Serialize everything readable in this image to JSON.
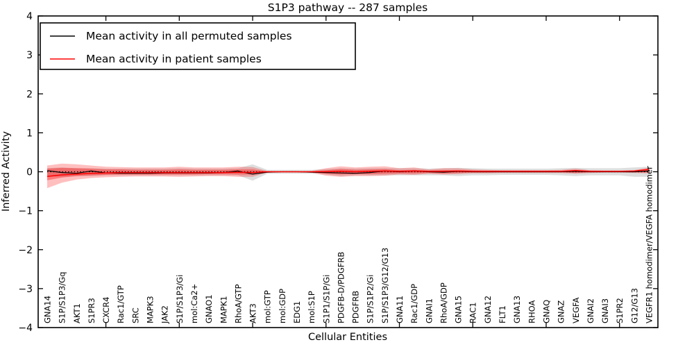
{
  "chart_data": {
    "type": "line",
    "title": "S1P3 pathway -- 287 samples",
    "xlabel": "Cellular Entities",
    "ylabel": "Inferred Activity",
    "ylim": [
      -4,
      4
    ],
    "y_ticks": [
      -4,
      -3,
      -2,
      -1,
      0,
      1,
      2,
      3,
      4
    ],
    "x_tick_indices": [
      4,
      9,
      14,
      19,
      24,
      29,
      34,
      39
    ],
    "grid": false,
    "legend_position": "upper-left",
    "categories": [
      "GNA14",
      "S1P/S1P3/Gq",
      "AKT1",
      "S1PR3",
      "CXCR4",
      "Rac1/GTP",
      "SRC",
      "MAPK3",
      "JAK2",
      "S1P/S1P3/Gi",
      "mol:Ca2+",
      "GNAO1",
      "MAPK1",
      "RhoA/GTP",
      "AKT3",
      "mol:GTP",
      "mol:GDP",
      "EDG1",
      "mol:S1P",
      "S1P1/S1P/Gi",
      "PDGFB-D/PDGFRB",
      "PDGFRB",
      "S1P/S1P2/Gi",
      "S1P/S1P3/G12/G13",
      "GNA11",
      "Rac1/GDP",
      "GNAI1",
      "RhoA/GDP",
      "GNA15",
      "RAC1",
      "GNA12",
      "FLT1",
      "GNA13",
      "RHOA",
      "GNAQ",
      "GNAZ",
      "VEGFA",
      "GNAI2",
      "GNAI3",
      "S1PR2",
      "G12/G13",
      "VEGFR1 homodimer/VEGFA homodimer"
    ],
    "series": [
      {
        "name": "Mean activity in all permuted samples",
        "color": "#000000",
        "values": [
          0.03,
          -0.02,
          -0.04,
          0.02,
          -0.03,
          -0.04,
          -0.04,
          -0.04,
          -0.03,
          -0.03,
          -0.03,
          -0.03,
          -0.02,
          0.02,
          -0.06,
          -0.01,
          0.0,
          0.0,
          -0.01,
          -0.02,
          -0.03,
          -0.04,
          -0.02,
          0.02,
          0.0,
          0.02,
          0.0,
          -0.01,
          0.01,
          0.0,
          0.0,
          0.0,
          0.0,
          0.0,
          0.0,
          0.0,
          0.01,
          0.0,
          0.0,
          0.0,
          0.0,
          0.02
        ]
      },
      {
        "name": "Mean activity in patient samples",
        "color": "#ff0000",
        "values": [
          -0.12,
          -0.08,
          -0.06,
          -0.04,
          -0.03,
          -0.02,
          -0.02,
          -0.02,
          -0.02,
          -0.02,
          -0.02,
          -0.02,
          -0.02,
          -0.01,
          -0.02,
          0.0,
          0.0,
          0.0,
          0.0,
          0.0,
          0.01,
          0.0,
          0.01,
          0.02,
          0.01,
          0.02,
          0.01,
          0.01,
          0.02,
          0.01,
          0.01,
          0.01,
          0.01,
          0.01,
          0.01,
          0.01,
          0.03,
          0.01,
          0.01,
          0.01,
          0.02,
          0.06
        ]
      }
    ],
    "bands": [
      {
        "name": "permuted-range",
        "color": "rgba(0,0,0,0.13)",
        "upper": [
          0.09,
          0.11,
          0.09,
          0.09,
          0.08,
          0.08,
          0.08,
          0.08,
          0.08,
          0.09,
          0.08,
          0.08,
          0.08,
          0.09,
          0.19,
          0.05,
          0.05,
          0.05,
          0.05,
          0.07,
          0.09,
          0.08,
          0.09,
          0.09,
          0.09,
          0.09,
          0.08,
          0.09,
          0.1,
          0.09,
          0.08,
          0.08,
          0.08,
          0.08,
          0.08,
          0.09,
          0.1,
          0.09,
          0.09,
          0.09,
          0.11,
          0.13
        ],
        "lower": [
          -0.12,
          -0.13,
          -0.11,
          -0.11,
          -0.09,
          -0.09,
          -0.09,
          -0.09,
          -0.09,
          -0.09,
          -0.09,
          -0.09,
          -0.09,
          -0.09,
          -0.23,
          -0.05,
          -0.05,
          -0.05,
          -0.05,
          -0.07,
          -0.11,
          -0.09,
          -0.09,
          -0.09,
          -0.09,
          -0.09,
          -0.09,
          -0.09,
          -0.11,
          -0.09,
          -0.09,
          -0.08,
          -0.08,
          -0.08,
          -0.08,
          -0.09,
          -0.11,
          -0.09,
          -0.09,
          -0.09,
          -0.13,
          -0.13
        ]
      },
      {
        "name": "patient-range-outer",
        "color": "rgba(255,0,0,0.25)",
        "upper": [
          0.16,
          0.21,
          0.19,
          0.16,
          0.13,
          0.12,
          0.11,
          0.11,
          0.11,
          0.13,
          0.11,
          0.11,
          0.11,
          0.13,
          0.12,
          0.02,
          0.01,
          0.01,
          0.02,
          0.09,
          0.14,
          0.11,
          0.13,
          0.14,
          0.09,
          0.11,
          0.06,
          0.09,
          0.09,
          0.06,
          0.05,
          0.04,
          0.04,
          0.04,
          0.04,
          0.05,
          0.08,
          0.04,
          0.03,
          0.03,
          0.04,
          0.11
        ],
        "lower": [
          -0.42,
          -0.28,
          -0.2,
          -0.16,
          -0.14,
          -0.13,
          -0.12,
          -0.12,
          -0.12,
          -0.13,
          -0.12,
          -0.11,
          -0.11,
          -0.13,
          -0.13,
          -0.02,
          -0.01,
          -0.01,
          -0.02,
          -0.1,
          -0.13,
          -0.11,
          -0.11,
          -0.1,
          -0.07,
          -0.08,
          -0.05,
          -0.07,
          -0.06,
          -0.04,
          -0.04,
          -0.03,
          -0.03,
          -0.03,
          -0.03,
          -0.03,
          -0.05,
          -0.03,
          -0.02,
          -0.02,
          -0.03,
          -0.04
        ]
      },
      {
        "name": "patient-range-inner",
        "color": "rgba(255,0,0,0.35)",
        "upper": [
          0.08,
          0.1,
          0.09,
          0.08,
          0.06,
          0.06,
          0.05,
          0.05,
          0.05,
          0.06,
          0.05,
          0.05,
          0.05,
          0.06,
          0.06,
          0.01,
          0.005,
          0.005,
          0.01,
          0.04,
          0.07,
          0.05,
          0.06,
          0.07,
          0.04,
          0.05,
          0.03,
          0.04,
          0.04,
          0.03,
          0.02,
          0.02,
          0.02,
          0.02,
          0.02,
          0.02,
          0.04,
          0.02,
          0.015,
          0.015,
          0.02,
          0.08
        ],
        "lower": [
          -0.22,
          -0.15,
          -0.11,
          -0.09,
          -0.08,
          -0.07,
          -0.07,
          -0.07,
          -0.07,
          -0.07,
          -0.07,
          -0.06,
          -0.06,
          -0.07,
          -0.07,
          -0.01,
          -0.005,
          -0.005,
          -0.01,
          -0.05,
          -0.07,
          -0.06,
          -0.06,
          -0.05,
          -0.04,
          -0.04,
          -0.03,
          -0.04,
          -0.03,
          -0.02,
          -0.02,
          -0.015,
          -0.015,
          -0.015,
          -0.015,
          -0.015,
          -0.03,
          -0.015,
          -0.01,
          -0.01,
          -0.015,
          -0.02
        ]
      }
    ],
    "zero_line": {
      "style": "dotted",
      "color": "#000000",
      "y": 0
    },
    "legend": {
      "entries": [
        {
          "label": "Mean activity in all permuted samples",
          "color": "#000000"
        },
        {
          "label": "Mean activity in patient samples",
          "color": "#ff0000"
        }
      ]
    }
  }
}
